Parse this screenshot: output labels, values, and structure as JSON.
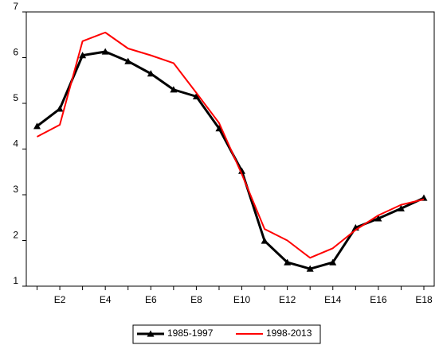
{
  "chart_data": {
    "type": "line",
    "categories": [
      null,
      "E2",
      null,
      "E4",
      null,
      "E6",
      null,
      "E8",
      null,
      "E10",
      null,
      "E12",
      null,
      "E14",
      null,
      "E16",
      null,
      "E18"
    ],
    "series": [
      {
        "name": "1985-1997",
        "color": "#000000",
        "marker": "triangle",
        "values": [
          4.5,
          4.88,
          6.05,
          6.13,
          5.92,
          5.65,
          5.3,
          5.15,
          4.45,
          3.52,
          1.99,
          1.52,
          1.38,
          1.52,
          2.28,
          2.48,
          2.7,
          2.93
        ]
      },
      {
        "name": "1998-2013",
        "color": "#ff0000",
        "values": [
          4.27,
          4.53,
          6.36,
          6.55,
          6.2,
          6.05,
          5.88,
          5.23,
          4.57,
          3.45,
          2.25,
          2.0,
          1.62,
          1.83,
          2.23,
          2.55,
          2.78,
          2.9
        ]
      }
    ],
    "ylim": [
      1,
      7
    ],
    "yticks": [
      1,
      2,
      3,
      4,
      5,
      6,
      7
    ],
    "legend": "bottom"
  }
}
